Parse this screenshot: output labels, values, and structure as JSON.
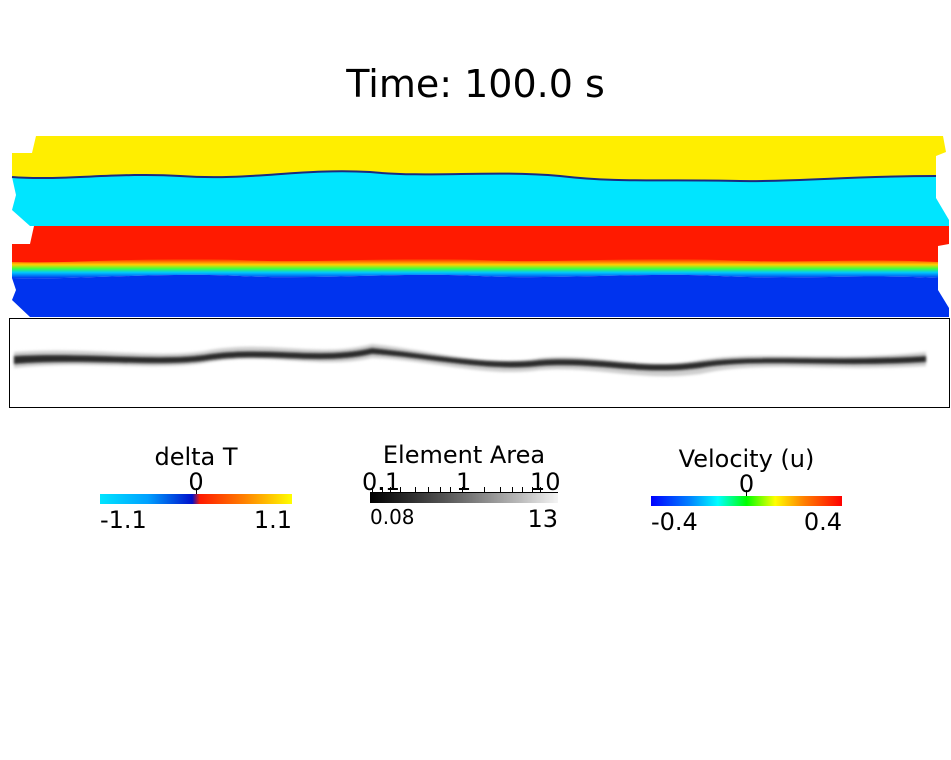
{
  "title": "Time: 100.0 s",
  "colorbars": {
    "delta_t": {
      "name": "delta T",
      "mid": "0",
      "min": "-1.1",
      "max": "1.1"
    },
    "element_area": {
      "name": "Element Area",
      "ticks": [
        "0.1",
        "1",
        "10"
      ],
      "min": "0.08",
      "max": "13",
      "scale": "log"
    },
    "velocity": {
      "name": "Velocity (u)",
      "mid": "0",
      "min": "-0.4",
      "max": "0.4"
    }
  },
  "colors": {
    "yellow": "#ffee00",
    "cyan": "#00e5ff",
    "red": "#ff1a00",
    "blue": "#0033ee",
    "mesh": "#111111"
  }
}
